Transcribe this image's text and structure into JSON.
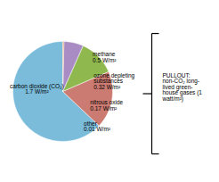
{
  "chart_data": {
    "type": "pie",
    "categories": [
      "carbon dioxide (CO₂)\n1.7 W/m²",
      "methane\n0.5 W/m²",
      "ozone depleting\nsubstances\n0.32 W/m²",
      "nitrous oxide\n0.17 W/m²",
      "other\n0.01 W/m²"
    ],
    "values": [
      1.7,
      0.5,
      0.32,
      0.17,
      0.01
    ],
    "colors": [
      "#7bbcdb",
      "#cc7b72",
      "#8fb84e",
      "#a98cc4",
      "#d4854a"
    ],
    "annotations": [
      "PULLOUT:\nnon-CO₂ long-\nlived green-\nhouse gases (1\nwatt/m²)"
    ]
  }
}
